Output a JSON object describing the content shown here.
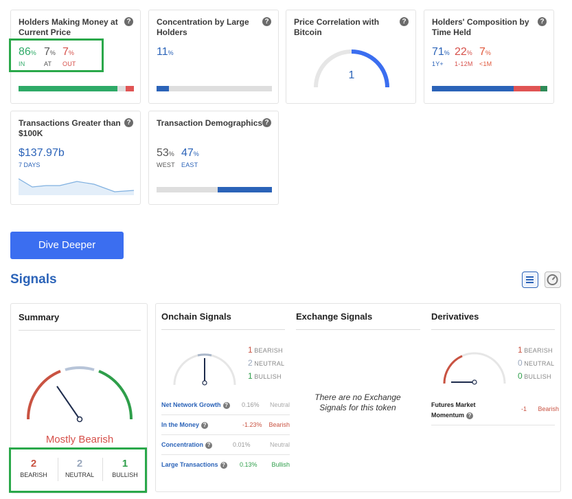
{
  "cards": {
    "holders_money": {
      "title": "Holders Making Money at Current Price",
      "in": {
        "value": "86",
        "unit": "%",
        "label": "IN"
      },
      "at": {
        "value": "7",
        "unit": "%",
        "label": "AT"
      },
      "out": {
        "value": "7",
        "unit": "%",
        "label": "OUT"
      },
      "bar": [
        86,
        7,
        7
      ]
    },
    "concentration": {
      "title": "Concentration by Large Holders",
      "value": "11",
      "unit": "%",
      "bar": [
        11,
        89
      ]
    },
    "price_correlation": {
      "title": "Price Correlation with Bitcoin",
      "value": "1"
    },
    "composition": {
      "title": "Holders' Composition by Time Held",
      "long": {
        "value": "71",
        "unit": "%",
        "label": "1Y+"
      },
      "mid": {
        "value": "22",
        "unit": "%",
        "label": "1-12M"
      },
      "short": {
        "value": "7",
        "unit": "%",
        "label": "<1M"
      },
      "bar": [
        71,
        22,
        7
      ]
    },
    "transactions": {
      "title": "Transactions Greater than $100K",
      "value": "$137.97b",
      "label": "7 DAYS"
    },
    "demographics": {
      "title": "Transaction Demographics",
      "west": {
        "value": "53",
        "unit": "%",
        "label": "WEST"
      },
      "east": {
        "value": "47",
        "unit": "%",
        "label": "EAST"
      },
      "bar": [
        53,
        47
      ]
    }
  },
  "dive_deeper": "Dive Deeper",
  "signals_title": "Signals",
  "summary": {
    "title": "Summary",
    "verdict": "Mostly Bearish",
    "bearish": {
      "count": "2",
      "label": "BEARISH"
    },
    "neutral": {
      "count": "2",
      "label": "NEUTRAL"
    },
    "bullish": {
      "count": "1",
      "label": "BULLISH"
    }
  },
  "onchain": {
    "title": "Onchain Signals",
    "bearish": {
      "count": "1",
      "label": "BEARISH"
    },
    "neutral": {
      "count": "2",
      "label": "NEUTRAL"
    },
    "bullish": {
      "count": "1",
      "label": "BULLISH"
    },
    "rows": [
      {
        "name": "Net Network Growth",
        "value": "0.16%",
        "result": "Neutral"
      },
      {
        "name": "In the Money",
        "value": "-1.23%",
        "result": "Bearish"
      },
      {
        "name": "Concentration",
        "value": "0.01%",
        "result": "Neutral"
      },
      {
        "name": "Large Transactions",
        "value": "0.13%",
        "result": "Bullish"
      }
    ]
  },
  "exchange": {
    "title": "Exchange Signals",
    "empty": "There are no Exchange Signals for this token"
  },
  "derivatives": {
    "title": "Derivatives",
    "bearish": {
      "count": "1",
      "label": "BEARISH"
    },
    "neutral": {
      "count": "0",
      "label": "NEUTRAL"
    },
    "bullish": {
      "count": "0",
      "label": "BULLISH"
    },
    "row": {
      "name": "Futures Market Momentum",
      "value": "-1",
      "result": "Bearish"
    }
  },
  "icons": {
    "help": "question-circle-icon",
    "list_view": "list-icon",
    "gauge_view": "gauge-icon"
  },
  "colors": {
    "green": "#2eaa67",
    "red": "#d6504a",
    "blue": "#2b63b8",
    "button": "#3b6ef0",
    "highlight": "#2aa84a"
  }
}
